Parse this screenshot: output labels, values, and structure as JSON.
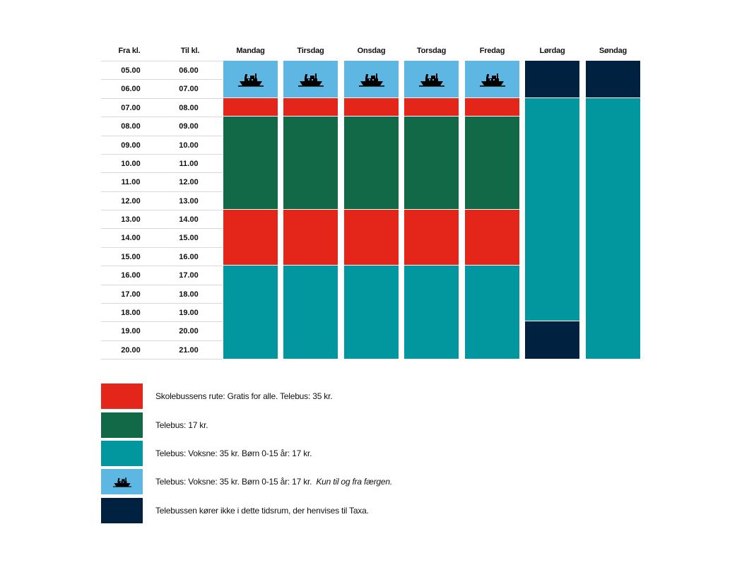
{
  "headers": {
    "from": "Fra kl.",
    "to": "Til kl.",
    "days": [
      "Mandag",
      "Tirsdag",
      "Onsdag",
      "Torsdag",
      "Fredag",
      "Lørdag",
      "Søndag"
    ]
  },
  "rows": [
    {
      "from": "05.00",
      "to": "06.00"
    },
    {
      "from": "06.00",
      "to": "07.00"
    },
    {
      "from": "07.00",
      "to": "08.00"
    },
    {
      "from": "08.00",
      "to": "09.00"
    },
    {
      "from": "09.00",
      "to": "10.00"
    },
    {
      "from": "10.00",
      "to": "11.00"
    },
    {
      "from": "11.00",
      "to": "12.00"
    },
    {
      "from": "12.00",
      "to": "13.00"
    },
    {
      "from": "13.00",
      "to": "14.00"
    },
    {
      "from": "14.00",
      "to": "15.00"
    },
    {
      "from": "15.00",
      "to": "16.00"
    },
    {
      "from": "16.00",
      "to": "17.00"
    },
    {
      "from": "17.00",
      "to": "18.00"
    },
    {
      "from": "18.00",
      "to": "19.00"
    },
    {
      "from": "19.00",
      "to": "20.00"
    },
    {
      "from": "20.00",
      "to": "21.00"
    }
  ],
  "colors": {
    "school_route": "#e4261a",
    "telebus_17": "#116948",
    "telebus_teal": "#02979f",
    "ferry": "#5eb7e2",
    "no_service": "#00213f"
  },
  "schedule": {
    "weekday": [
      {
        "type": "ferry",
        "start_row": 0,
        "end_row": 2
      },
      {
        "type": "school_route",
        "start_row": 2,
        "end_row": 3
      },
      {
        "type": "telebus_17",
        "start_row": 3,
        "end_row": 8
      },
      {
        "type": "school_route",
        "start_row": 8,
        "end_row": 11
      },
      {
        "type": "telebus_teal",
        "start_row": 11,
        "end_row": 16
      }
    ],
    "saturday": [
      {
        "type": "no_service",
        "start_row": 0,
        "end_row": 2
      },
      {
        "type": "telebus_teal",
        "start_row": 2,
        "end_row": 14
      },
      {
        "type": "no_service",
        "start_row": 14,
        "end_row": 16
      }
    ],
    "sunday": [
      {
        "type": "no_service",
        "start_row": 0,
        "end_row": 2
      },
      {
        "type": "telebus_teal",
        "start_row": 2,
        "end_row": 16
      }
    ]
  },
  "legend": [
    {
      "type": "school_route",
      "text": "Skolebussens rute: Gratis for alle.  Telebus: 35 kr.",
      "note": ""
    },
    {
      "type": "telebus_17",
      "text": "Telebus: 17 kr.",
      "note": ""
    },
    {
      "type": "telebus_teal",
      "text": "Telebus: Voksne: 35 kr. Børn 0-15 år: 17 kr.",
      "note": ""
    },
    {
      "type": "ferry",
      "text": "Telebus: Voksne: 35 kr. Børn 0-15 år: 17 kr.",
      "note": "Kun til og fra færgen."
    },
    {
      "type": "no_service",
      "text": "Telebussen kører ikke i dette tidsrum, der henvises til Taxa.",
      "note": ""
    }
  ],
  "icons": {
    "ferry": "ferry-icon"
  }
}
